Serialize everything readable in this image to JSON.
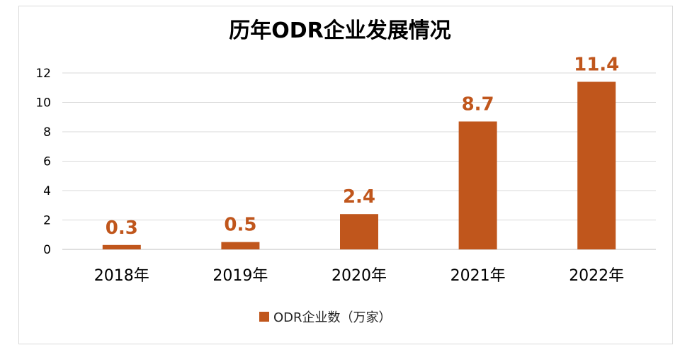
{
  "chart_data": {
    "type": "bar",
    "title": "历年ODR企业发展情况",
    "categories": [
      "2018年",
      "2019年",
      "2020年",
      "2021年",
      "2022年"
    ],
    "series": [
      {
        "name": "ODR企业数（万家）",
        "values": [
          0.3,
          0.5,
          2.4,
          8.7,
          11.4
        ],
        "color": "#c0561c"
      }
    ],
    "data_labels": [
      "0.3",
      "0.5",
      "2.4",
      "8.7",
      "11.4"
    ],
    "y_ticks": [
      "0",
      "2",
      "4",
      "6",
      "8",
      "10",
      "12"
    ],
    "ylim": [
      0,
      12
    ],
    "grid": true,
    "legend_position": "bottom",
    "label_color": "#c0561c"
  }
}
